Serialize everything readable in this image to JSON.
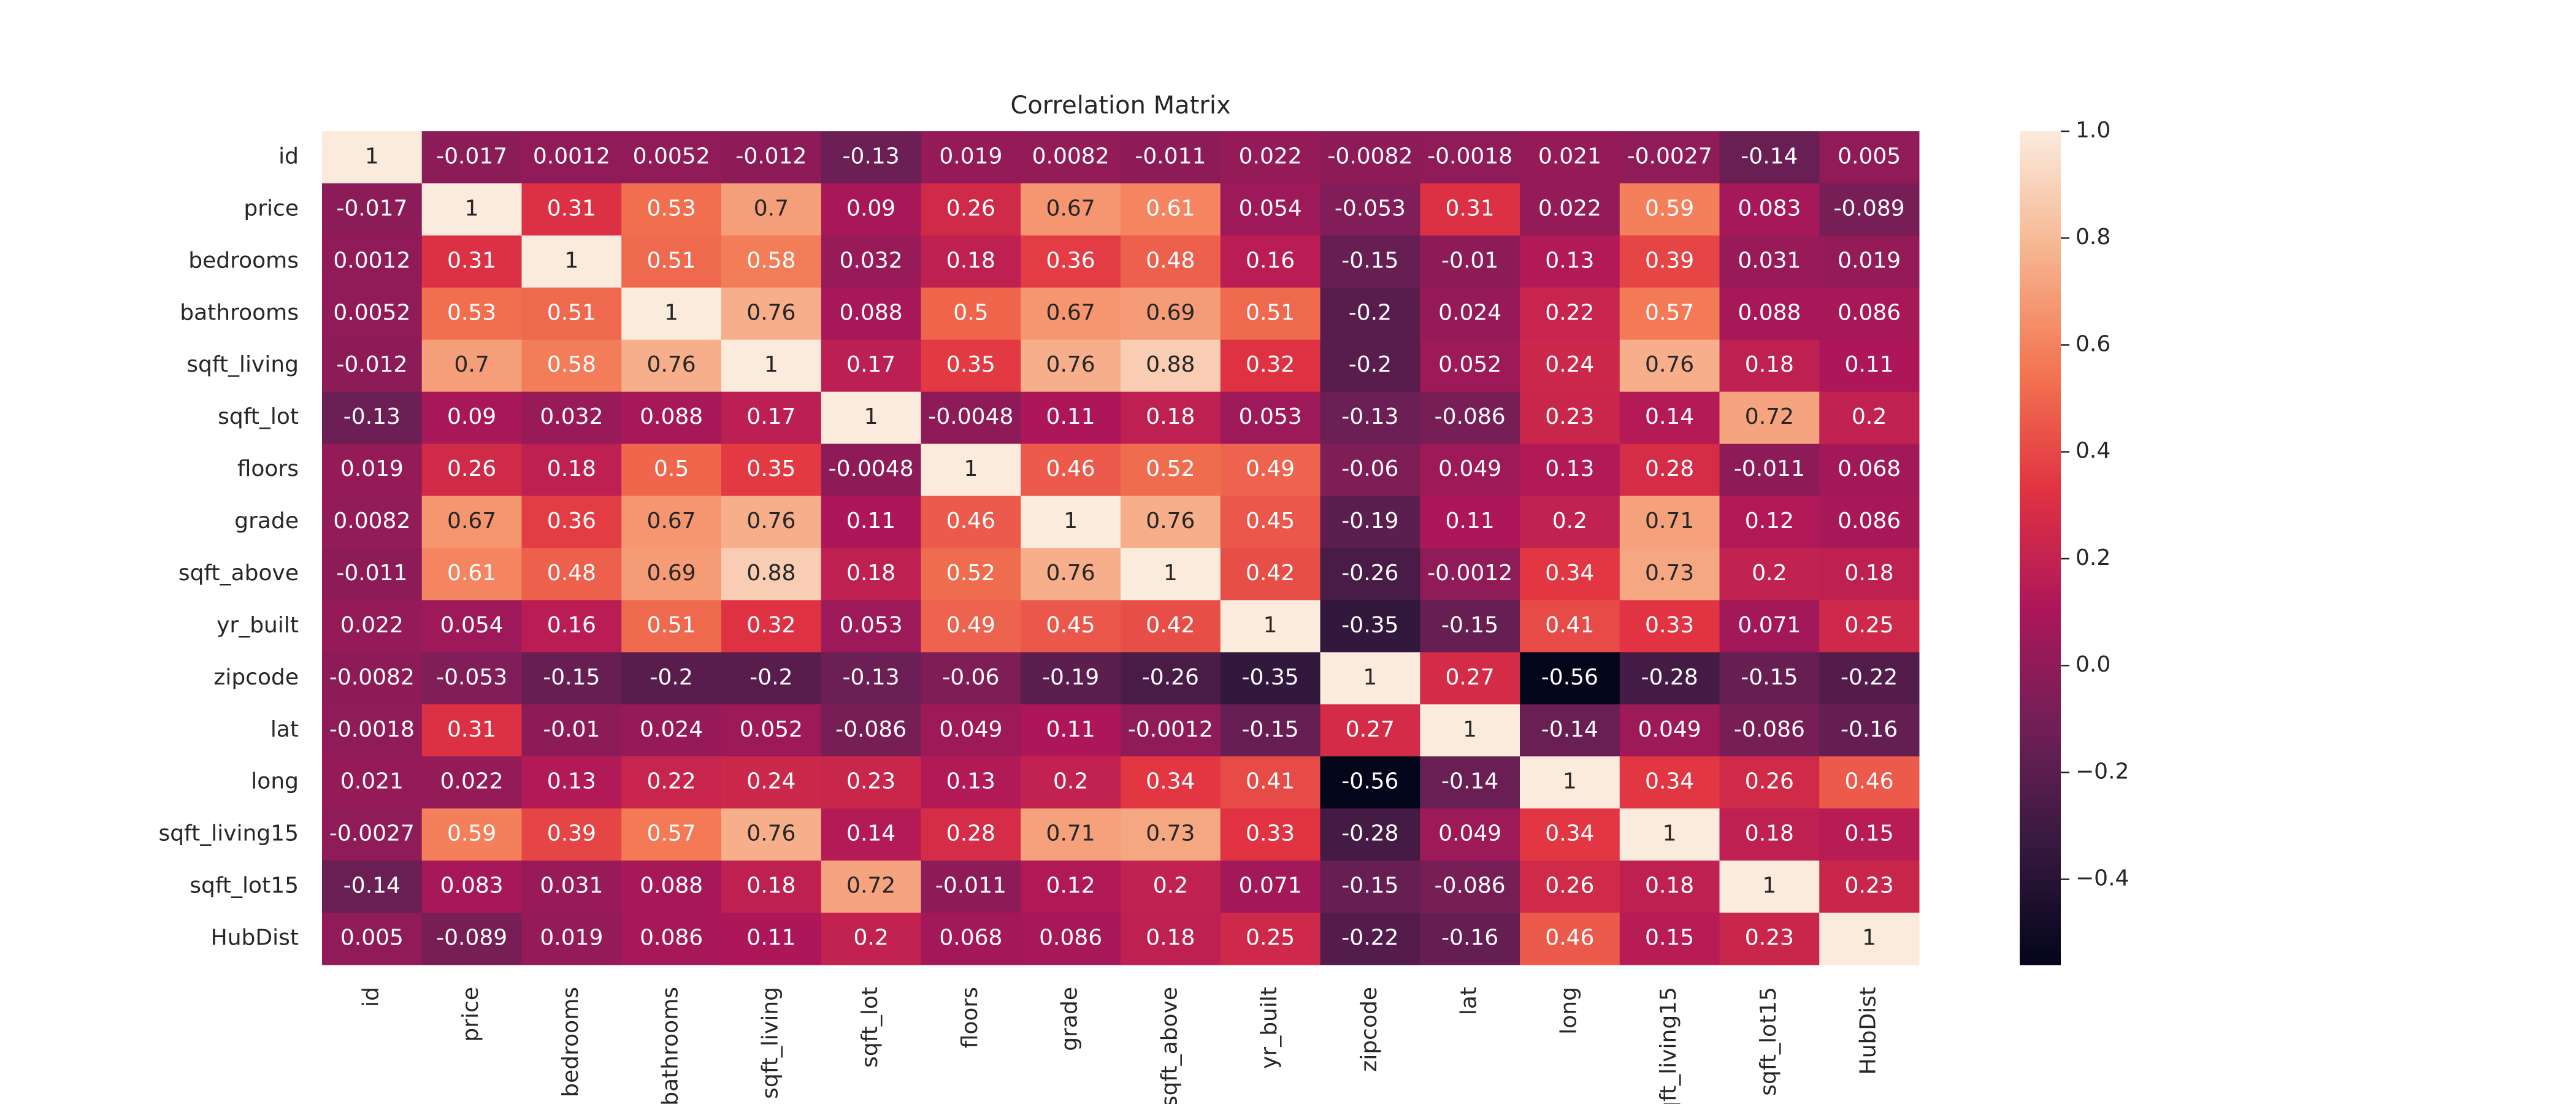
{
  "chart_data": {
    "type": "heatmap",
    "title": "Correlation Matrix",
    "categories": [
      "id",
      "price",
      "bedrooms",
      "bathrooms",
      "sqft_living",
      "sqft_lot",
      "floors",
      "grade",
      "sqft_above",
      "yr_built",
      "zipcode",
      "lat",
      "long",
      "sqft_living15",
      "sqft_lot15",
      "HubDist"
    ],
    "values": [
      [
        1,
        -0.017,
        0.0012,
        0.0052,
        -0.012,
        -0.13,
        0.019,
        0.0082,
        -0.011,
        0.022,
        -0.0082,
        -0.0018,
        0.021,
        -0.0027,
        -0.14,
        0.005
      ],
      [
        -0.017,
        1,
        0.31,
        0.53,
        0.7,
        0.09,
        0.26,
        0.67,
        0.61,
        0.054,
        -0.053,
        0.31,
        0.022,
        0.59,
        0.083,
        -0.089
      ],
      [
        0.0012,
        0.31,
        1,
        0.51,
        0.58,
        0.032,
        0.18,
        0.36,
        0.48,
        0.16,
        -0.15,
        -0.01,
        0.13,
        0.39,
        0.031,
        0.019
      ],
      [
        0.0052,
        0.53,
        0.51,
        1,
        0.76,
        0.088,
        0.5,
        0.67,
        0.69,
        0.51,
        -0.2,
        0.024,
        0.22,
        0.57,
        0.088,
        0.086
      ],
      [
        -0.012,
        0.7,
        0.58,
        0.76,
        1,
        0.17,
        0.35,
        0.76,
        0.88,
        0.32,
        -0.2,
        0.052,
        0.24,
        0.76,
        0.18,
        0.11
      ],
      [
        -0.13,
        0.09,
        0.032,
        0.088,
        0.17,
        1,
        -0.0048,
        0.11,
        0.18,
        0.053,
        -0.13,
        -0.086,
        0.23,
        0.14,
        0.72,
        0.2
      ],
      [
        0.019,
        0.26,
        0.18,
        0.5,
        0.35,
        -0.0048,
        1,
        0.46,
        0.52,
        0.49,
        -0.06,
        0.049,
        0.13,
        0.28,
        -0.011,
        0.068
      ],
      [
        0.0082,
        0.67,
        0.36,
        0.67,
        0.76,
        0.11,
        0.46,
        1,
        0.76,
        0.45,
        -0.19,
        0.11,
        0.2,
        0.71,
        0.12,
        0.086
      ],
      [
        -0.011,
        0.61,
        0.48,
        0.69,
        0.88,
        0.18,
        0.52,
        0.76,
        1,
        0.42,
        -0.26,
        -0.0012,
        0.34,
        0.73,
        0.2,
        0.18
      ],
      [
        0.022,
        0.054,
        0.16,
        0.51,
        0.32,
        0.053,
        0.49,
        0.45,
        0.42,
        1,
        -0.35,
        -0.15,
        0.41,
        0.33,
        0.071,
        0.25
      ],
      [
        -0.0082,
        -0.053,
        -0.15,
        -0.2,
        -0.2,
        -0.13,
        -0.06,
        -0.19,
        -0.26,
        -0.35,
        1,
        0.27,
        -0.56,
        -0.28,
        -0.15,
        -0.22
      ],
      [
        -0.0018,
        0.31,
        -0.01,
        0.024,
        0.052,
        -0.086,
        0.049,
        0.11,
        -0.0012,
        -0.15,
        0.27,
        1,
        -0.14,
        0.049,
        -0.086,
        -0.16
      ],
      [
        0.021,
        0.022,
        0.13,
        0.22,
        0.24,
        0.23,
        0.13,
        0.2,
        0.34,
        0.41,
        -0.56,
        -0.14,
        1,
        0.34,
        0.26,
        0.46
      ],
      [
        -0.0027,
        0.59,
        0.39,
        0.57,
        0.76,
        0.14,
        0.28,
        0.71,
        0.73,
        0.33,
        -0.28,
        0.049,
        0.34,
        1,
        0.18,
        0.15
      ],
      [
        -0.14,
        0.083,
        0.031,
        0.088,
        0.18,
        0.72,
        -0.011,
        0.12,
        0.2,
        0.071,
        -0.15,
        -0.086,
        0.26,
        0.18,
        1,
        0.23
      ],
      [
        0.005,
        -0.089,
        0.019,
        0.086,
        0.11,
        0.2,
        0.068,
        0.086,
        0.18,
        0.25,
        -0.22,
        -0.16,
        0.46,
        0.15,
        0.23,
        1
      ]
    ],
    "colormap": [
      "#03051a",
      "#35193e",
      "#701f57",
      "#ad1759",
      "#e13342",
      "#f37651",
      "#f6b48f",
      "#faebdd"
    ],
    "clim": [
      -0.56,
      1
    ],
    "cticks": [
      {
        "value": -0.4,
        "label": "−0.4"
      },
      {
        "value": -0.2,
        "label": "−0.2"
      },
      {
        "value": 0,
        "label": "0.0"
      },
      0.2,
      0.4,
      0.6,
      0.8,
      {
        "value": 1,
        "label": "1.0"
      }
    ]
  }
}
